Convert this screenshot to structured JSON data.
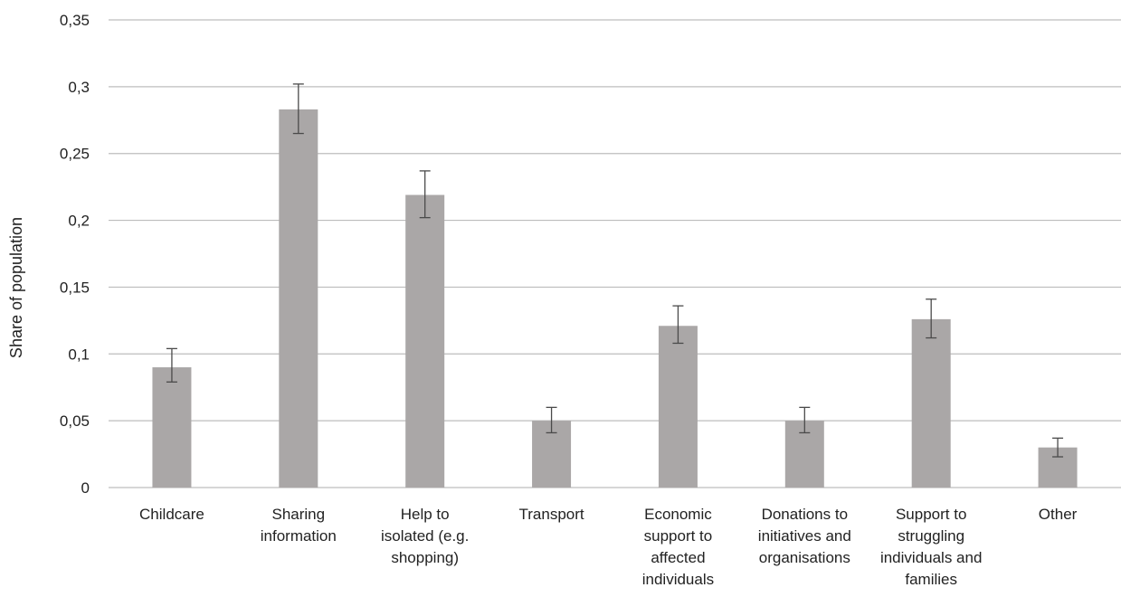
{
  "chart_data": {
    "type": "bar",
    "title": "",
    "xlabel": "",
    "ylabel": "Share of population",
    "ylim": [
      0,
      0.35
    ],
    "y_ticks": [
      0,
      0.05,
      0.1,
      0.15,
      0.2,
      0.25,
      0.3,
      0.35
    ],
    "y_tick_labels": [
      "0",
      "0,05",
      "0,1",
      "0,15",
      "0,2",
      "0,25",
      "0,3",
      "0,35"
    ],
    "grid": "horizontal",
    "categories": [
      [
        "Childcare"
      ],
      [
        "Sharing",
        "information"
      ],
      [
        "Help to",
        "isolated (e.g.",
        "shopping)"
      ],
      [
        "Transport"
      ],
      [
        "Economic",
        "support to",
        "affected",
        "individuals"
      ],
      [
        "Donations to",
        "initiatives and",
        "organisations"
      ],
      [
        "Support to",
        "struggling",
        "individuals and",
        "families"
      ],
      [
        "Other"
      ]
    ],
    "values": [
      0.09,
      0.283,
      0.219,
      0.05,
      0.121,
      0.05,
      0.126,
      0.03
    ],
    "error_low": [
      0.079,
      0.265,
      0.202,
      0.041,
      0.108,
      0.041,
      0.112,
      0.023
    ],
    "error_high": [
      0.104,
      0.302,
      0.237,
      0.06,
      0.136,
      0.06,
      0.141,
      0.037
    ],
    "bar_color": "#aaa7a7",
    "grid_color": "#bdbdbd",
    "error_color": "#4a4a4a"
  }
}
